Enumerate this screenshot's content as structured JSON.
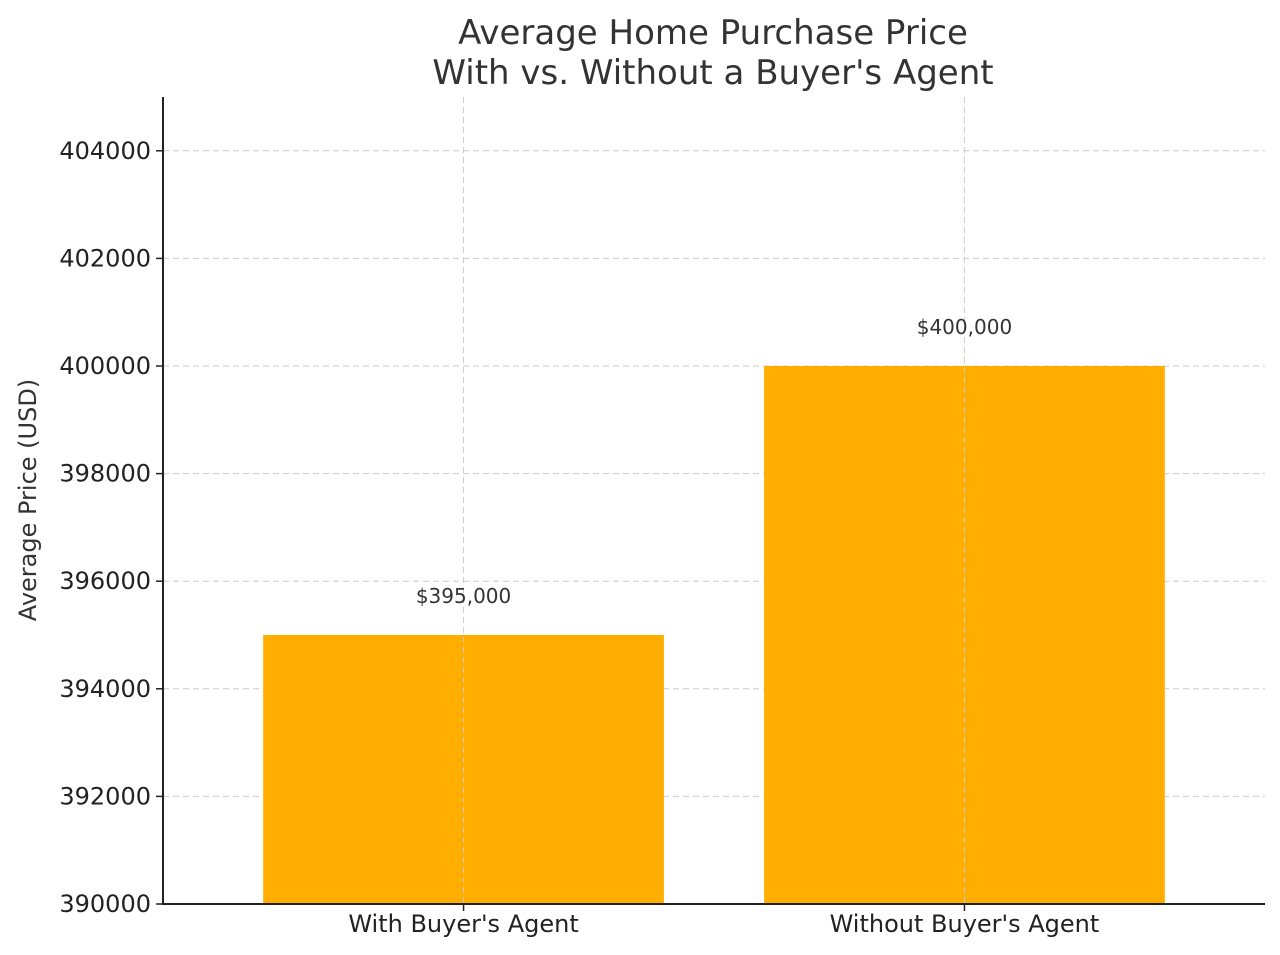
{
  "chart_data": {
    "type": "bar",
    "title_lines": [
      "Average Home Purchase Price",
      "With vs. Without a Buyer's Agent"
    ],
    "xlabel": "",
    "ylabel": "Average Price (USD)",
    "categories": [
      "With Buyer's Agent",
      "Without Buyer's Agent"
    ],
    "values": [
      395000,
      400000
    ],
    "data_labels": [
      "$395,000",
      "$400,000"
    ],
    "ylim": [
      390000,
      405000
    ],
    "yticks": [
      390000,
      392000,
      394000,
      396000,
      398000,
      400000,
      402000,
      404000
    ],
    "ytick_labels": [
      "390000",
      "392000",
      "394000",
      "396000",
      "398000",
      "400000",
      "402000",
      "404000"
    ],
    "grid": true,
    "bar_color": "#FFAE00",
    "legend": null
  }
}
